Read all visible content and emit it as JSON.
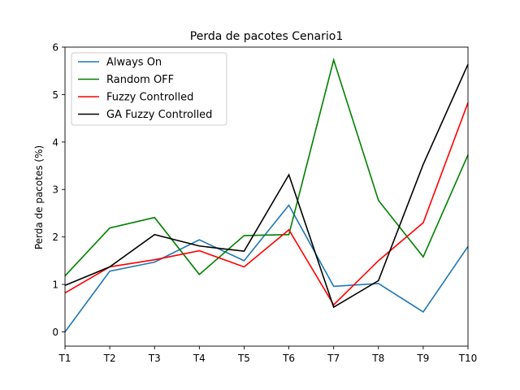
{
  "chart_data": {
    "type": "line",
    "title": "Perda de pacotes Cenario1",
    "xlabel": "",
    "ylabel": "Perda de pacotes (%)",
    "categories": [
      "T1",
      "T2",
      "T3",
      "T4",
      "T5",
      "T6",
      "T7",
      "T8",
      "T9",
      "T10"
    ],
    "ylim": [
      -0.3,
      6
    ],
    "yticks": [
      0,
      1,
      2,
      3,
      4,
      5,
      6
    ],
    "grid": false,
    "legend_position": "top-left",
    "series": [
      {
        "name": "Always On",
        "color": "#1f77b4",
        "values": [
          0.0,
          1.28,
          1.47,
          1.94,
          1.5,
          2.67,
          0.96,
          1.02,
          0.42,
          1.8
        ]
      },
      {
        "name": "Random OFF",
        "color": "#008000",
        "values": [
          1.18,
          2.19,
          2.41,
          1.21,
          2.03,
          2.05,
          5.73,
          2.77,
          1.58,
          3.73
        ]
      },
      {
        "name": "Fuzzy Controlled",
        "color": "#ff0000",
        "values": [
          0.82,
          1.37,
          1.52,
          1.71,
          1.37,
          2.15,
          0.57,
          1.5,
          2.3,
          4.83
        ]
      },
      {
        "name": "GA Fuzzy Controlled",
        "color": "#000000",
        "values": [
          0.98,
          1.37,
          2.05,
          1.81,
          1.7,
          3.31,
          0.52,
          1.08,
          3.53,
          5.64
        ]
      }
    ]
  }
}
